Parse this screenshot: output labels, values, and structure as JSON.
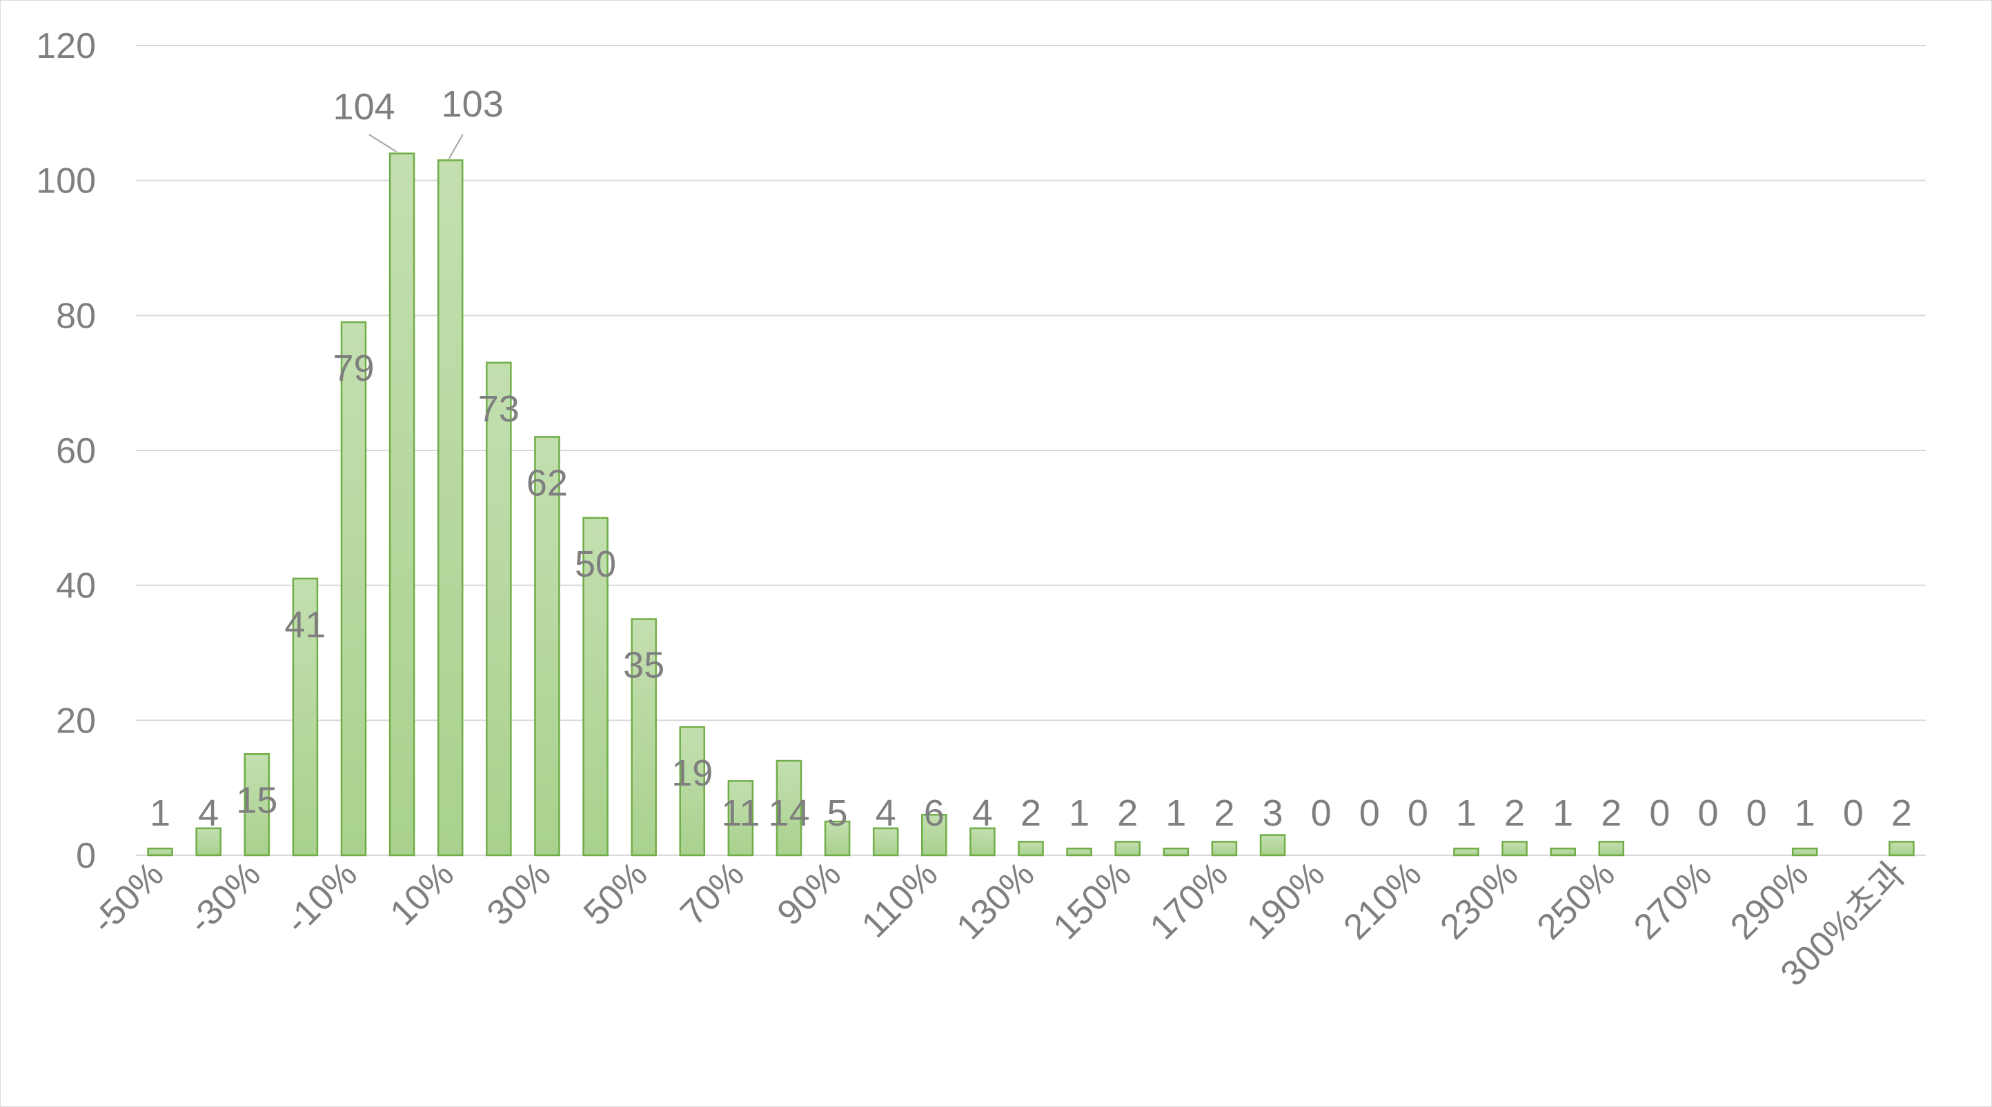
{
  "chart_data": {
    "type": "bar",
    "title": "",
    "xlabel": "",
    "ylabel": "",
    "ylim": [
      0,
      120
    ],
    "yticks": [
      0,
      20,
      40,
      60,
      80,
      100,
      120
    ],
    "grid": true,
    "legend": "none",
    "bar_color": "#a9d18e",
    "bar_border_color": "#70ad47",
    "categories": [
      "-50%",
      "-40%",
      "-30%",
      "-20%",
      "-10%",
      "0%",
      "10%",
      "20%",
      "30%",
      "40%",
      "50%",
      "60%",
      "70%",
      "80%",
      "90%",
      "100%",
      "110%",
      "120%",
      "130%",
      "140%",
      "150%",
      "160%",
      "170%",
      "180%",
      "190%",
      "200%",
      "210%",
      "220%",
      "230%",
      "240%",
      "250%",
      "260%",
      "270%",
      "280%",
      "290%",
      "300%",
      "300%초과"
    ],
    "tick_labels_shown": [
      "-50%",
      "-30%",
      "-10%",
      "10%",
      "30%",
      "50%",
      "70%",
      "90%",
      "110%",
      "130%",
      "150%",
      "170%",
      "190%",
      "210%",
      "230%",
      "250%",
      "270%",
      "290%",
      "300%초과"
    ],
    "values": [
      1,
      4,
      15,
      41,
      79,
      104,
      103,
      73,
      62,
      50,
      35,
      19,
      11,
      14,
      5,
      4,
      6,
      4,
      2,
      1,
      2,
      1,
      2,
      3,
      0,
      0,
      0,
      1,
      2,
      1,
      2,
      0,
      0,
      0,
      1,
      0,
      2
    ],
    "data_labels": [
      "1",
      "4",
      "15",
      "41",
      "79",
      "104",
      "103",
      "73",
      "62",
      "50",
      "35",
      "19",
      "11",
      "14",
      "5",
      "4",
      "6",
      "4",
      "2",
      "1",
      "2",
      "1",
      "2",
      "3",
      "0",
      "0",
      "0",
      "1",
      "2",
      "1",
      "2",
      "0",
      "0",
      "0",
      "1",
      "0",
      "2"
    ]
  }
}
